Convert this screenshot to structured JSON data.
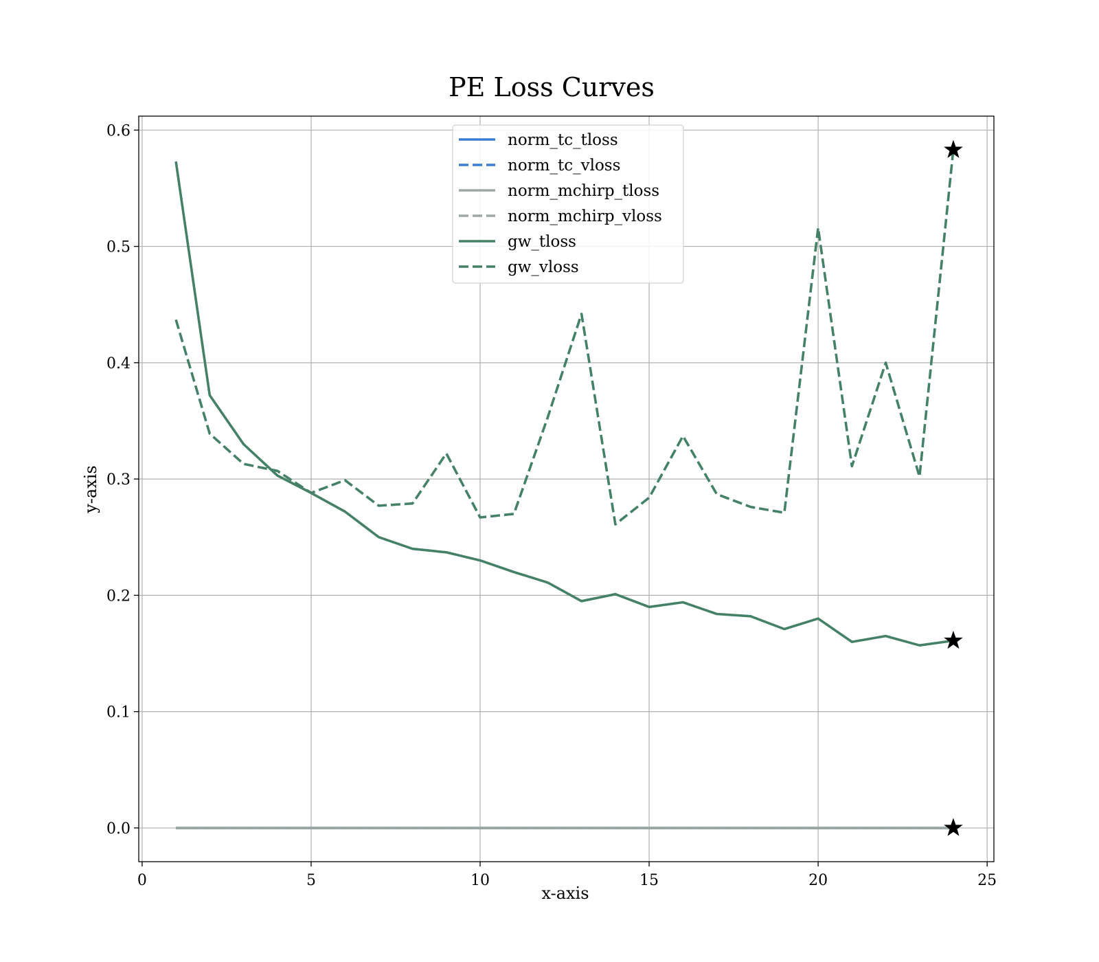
{
  "chart_data": {
    "type": "line",
    "title": "PE Loss Curves",
    "xlabel": "x-axis",
    "ylabel": "y-axis",
    "xlim": [
      -0.1,
      25.2
    ],
    "ylim": [
      -0.029,
      0.612
    ],
    "xticks": [
      0,
      5,
      10,
      15,
      20,
      25
    ],
    "yticks": [
      0.0,
      0.1,
      0.2,
      0.3,
      0.4,
      0.5,
      0.6
    ],
    "xtick_labels": [
      "0",
      "5",
      "10",
      "15",
      "20",
      "25"
    ],
    "ytick_labels": [
      "0.0",
      "0.1",
      "0.2",
      "0.3",
      "0.4",
      "0.5",
      "0.6"
    ],
    "grid": true,
    "legend_position": "upper-center",
    "x": [
      1,
      2,
      3,
      4,
      5,
      6,
      7,
      8,
      9,
      10,
      11,
      12,
      13,
      14,
      15,
      16,
      17,
      18,
      19,
      20,
      21,
      22,
      23,
      24
    ],
    "series": [
      {
        "name": "norm_tc_tloss",
        "color": "#3a7bd5",
        "dash": "solid",
        "values": [
          0,
          0,
          0,
          0,
          0,
          0,
          0,
          0,
          0,
          0,
          0,
          0,
          0,
          0,
          0,
          0,
          0,
          0,
          0,
          0,
          0,
          0,
          0,
          0
        ]
      },
      {
        "name": "norm_tc_vloss",
        "color": "#3a7bd5",
        "dash": "dashed",
        "values": [
          0,
          0,
          0,
          0,
          0,
          0,
          0,
          0,
          0,
          0,
          0,
          0,
          0,
          0,
          0,
          0,
          0,
          0,
          0,
          0,
          0,
          0,
          0,
          0
        ]
      },
      {
        "name": "norm_mchirp_tloss",
        "color": "#9ea8a3",
        "dash": "solid",
        "values": [
          0,
          0,
          0,
          0,
          0,
          0,
          0,
          0,
          0,
          0,
          0,
          0,
          0,
          0,
          0,
          0,
          0,
          0,
          0,
          0,
          0,
          0,
          0,
          0
        ]
      },
      {
        "name": "norm_mchirp_vloss",
        "color": "#9ea8a3",
        "dash": "dashed",
        "values": [
          0,
          0,
          0,
          0,
          0,
          0,
          0,
          0,
          0,
          0,
          0,
          0,
          0,
          0,
          0,
          0,
          0,
          0,
          0,
          0,
          0,
          0,
          0,
          0
        ]
      },
      {
        "name": "gw_tloss",
        "color": "#448166",
        "dash": "solid",
        "values": [
          0.573,
          0.372,
          0.33,
          0.303,
          0.288,
          0.272,
          0.25,
          0.24,
          0.237,
          0.23,
          0.22,
          0.211,
          0.195,
          0.201,
          0.19,
          0.194,
          0.184,
          0.182,
          0.171,
          0.18,
          0.16,
          0.165,
          0.157,
          0.161
        ]
      },
      {
        "name": "gw_vloss",
        "color": "#448166",
        "dash": "dashed",
        "values": [
          0.437,
          0.339,
          0.313,
          0.307,
          0.288,
          0.299,
          0.277,
          0.279,
          0.322,
          0.267,
          0.27,
          0.353,
          0.442,
          0.261,
          0.284,
          0.337,
          0.287,
          0.276,
          0.271,
          0.516,
          0.311,
          0.4,
          0.302,
          0.583
        ]
      }
    ],
    "best_markers": [
      {
        "marker": "star",
        "x": 24,
        "y": 0.583
      },
      {
        "marker": "star",
        "x": 24,
        "y": 0.161
      },
      {
        "marker": "star",
        "x": 24,
        "y": 0.0
      }
    ]
  }
}
